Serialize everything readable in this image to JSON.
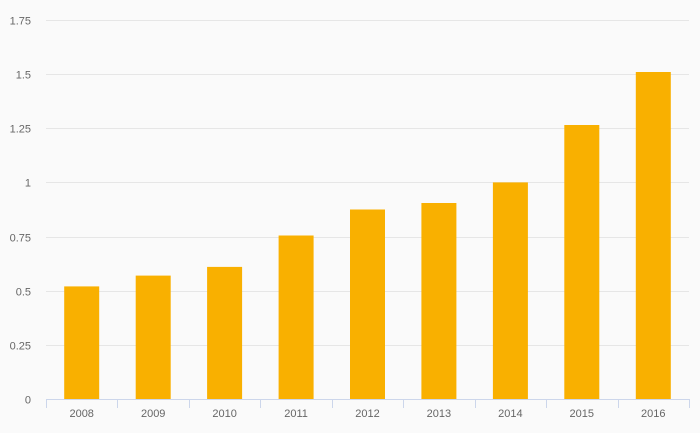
{
  "chart_data": {
    "type": "bar",
    "categories": [
      "2008",
      "2009",
      "2010",
      "2011",
      "2012",
      "2013",
      "2014",
      "2015",
      "2016"
    ],
    "values": [
      0.52,
      0.57,
      0.61,
      0.755,
      0.875,
      0.905,
      1.0,
      1.265,
      1.51
    ],
    "title": "",
    "xlabel": "",
    "ylabel": "",
    "ylim": [
      0,
      1.75
    ],
    "yticks": [
      "0",
      "0.25",
      "0.5",
      "0.75",
      "1",
      "1.25",
      "1.5",
      "1.75"
    ],
    "ytick_values": [
      0,
      0.25,
      0.5,
      0.75,
      1,
      1.25,
      1.5,
      1.75
    ],
    "grid": true,
    "legend": "none",
    "colors": {
      "bar": "#f9b000",
      "grid": "#e6e6e6",
      "axis": "#ccd6eb",
      "tick_text": "#666666",
      "background": "#fafafa"
    }
  }
}
